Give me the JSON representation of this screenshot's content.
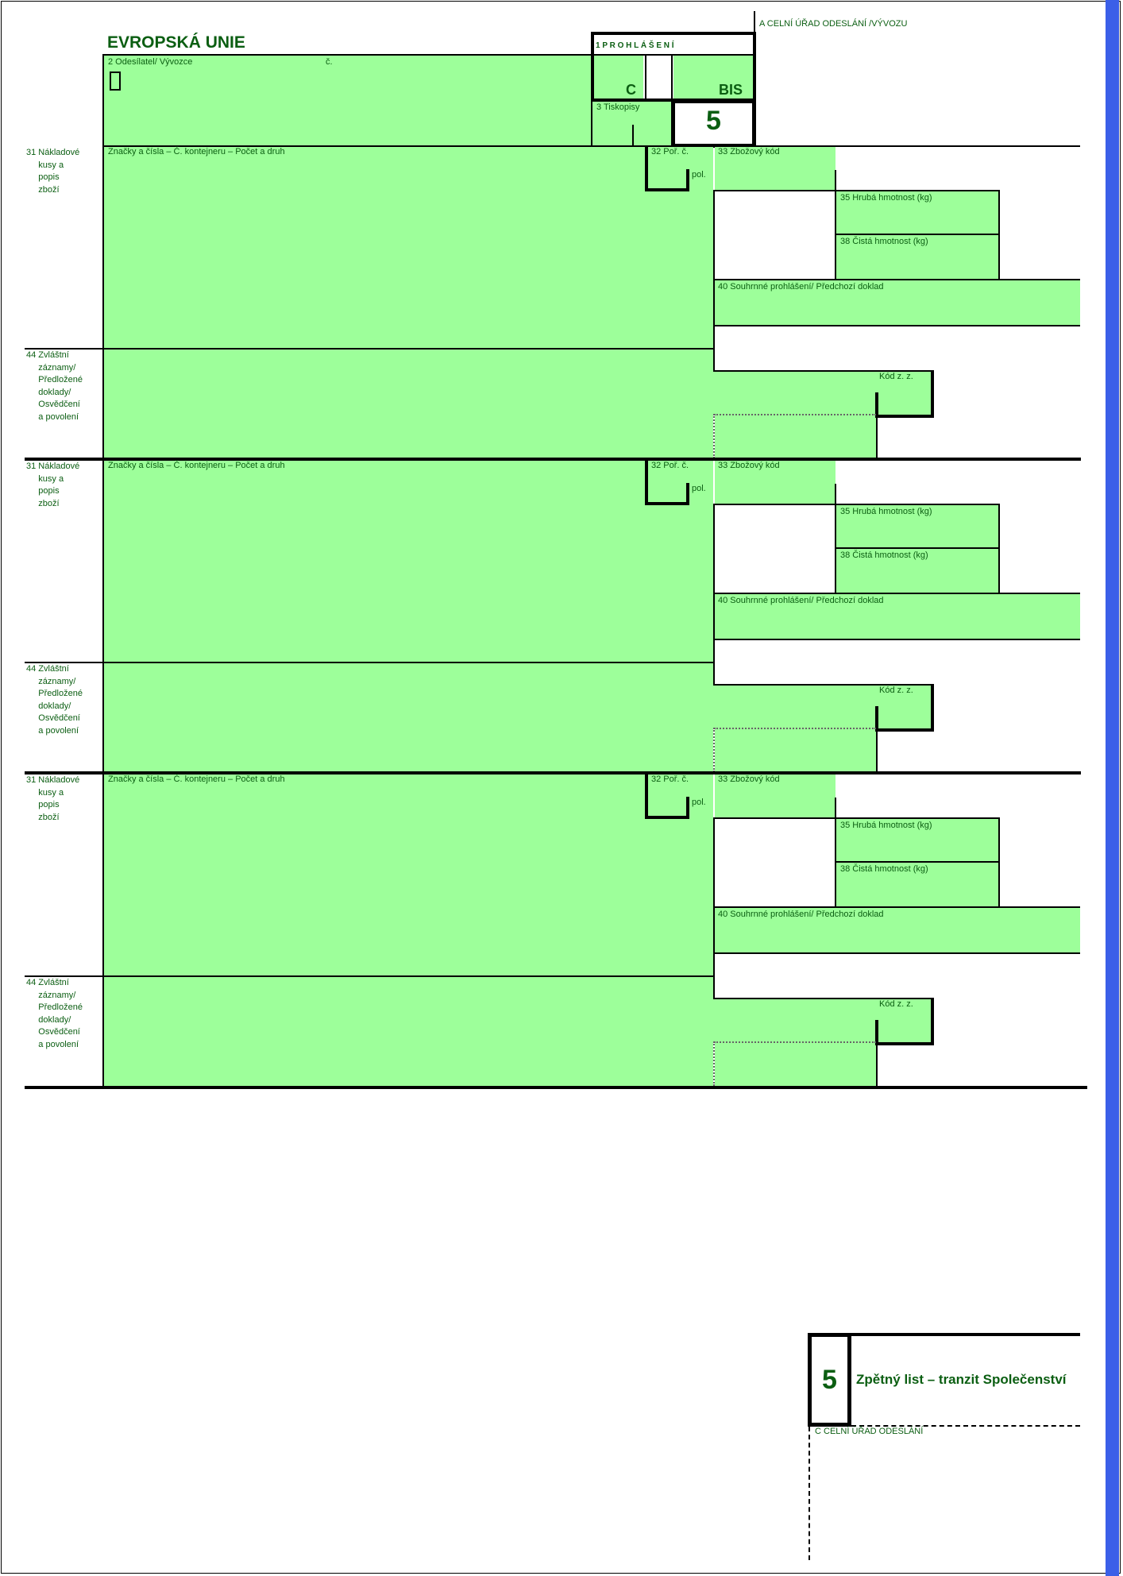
{
  "header": {
    "title": "EVROPSKÁ UNIE",
    "box_a": "A  CELNÍ ÚŘAD ODESLÁNÍ /VÝVOZU",
    "declaration": "1 P R O H L Á Š E N Í",
    "decl_c": "C",
    "decl_bis": "BIS",
    "exporter": "2 Odesílatel/ Vývozce",
    "no": "č.",
    "forms": "3 Tiskopisy",
    "copy_number": "5"
  },
  "blocks": [
    {
      "box31": "31 Nákladové\n     kusy a\n     popis\n     zboží",
      "marks": "Značky a čísla – Č. kontejneru – Počet a druh",
      "box32": "32 Poř. č.",
      "pol": "pol.",
      "box33": "33 Zbožový kód",
      "box35": "35 Hrubá hmotnost (kg)",
      "box38": "38 Čistá hmotnost (kg)",
      "box40": "40 Souhrnné prohlášení/ Předchozí doklad",
      "box44": "44 Zvláštní\n     záznamy/\n     Předložené\n     doklady/\n     Osvědčení\n     a povolení",
      "kod": "Kód z. z."
    },
    {
      "box31": "31 Nákladové\n     kusy a\n     popis\n     zboží",
      "marks": "Značky a čísla – Č. kontejneru – Počet a druh",
      "box32": "32 Poř. č.",
      "pol": "pol.",
      "box33": "33 Zbožový kód",
      "box35": "35 Hrubá hmotnost (kg)",
      "box38": "38 Čistá hmotnost (kg)",
      "box40": "40 Souhrnné prohlášení/ Předchozí doklad",
      "box44": "44 Zvláštní\n     záznamy/\n     Předložené\n     doklady/\n     Osvědčení\n     a povolení",
      "kod": "Kód z. z."
    },
    {
      "box31": "31 Nákladové\n     kusy a\n     popis\n     zboží",
      "marks": "Značky a čísla – Č. kontejneru – Počet a druh",
      "box32": "32 Poř. č.",
      "pol": "pol.",
      "box33": "33 Zbožový kód",
      "box35": "35 Hrubá hmotnost (kg)",
      "box38": "38 Čistá hmotnost (kg)",
      "box40": "40 Souhrnné prohlášení/ Předchozí doklad",
      "box44": "44 Zvláštní\n     záznamy/\n     Předložené\n     doklady/\n     Osvědčení\n     a povolení",
      "kod": "Kód z. z."
    }
  ],
  "footer": {
    "copy_number": "5",
    "title": "Zpětný list – tranzit Společenství",
    "box_c": "C  CELNÍ ÚŘAD ODESLÁNÍ"
  }
}
